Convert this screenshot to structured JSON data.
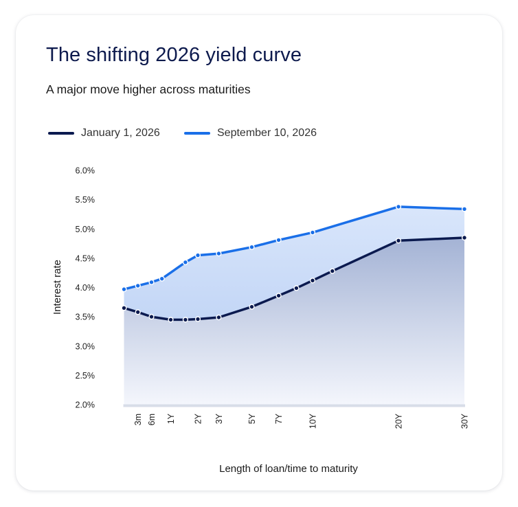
{
  "chart_data": {
    "type": "line",
    "title": "The shifting 2026 yield curve",
    "subtitle": "A major move higher across maturities",
    "xlabel": "Length of loan/time to maturity",
    "ylabel": "Interest rate",
    "ylim": [
      2.0,
      6.0
    ],
    "y_ticks": [
      "6.0%",
      "5.5%",
      "5.0%",
      "4.5%",
      "4.0%",
      "3.5%",
      "3.0%",
      "2.5%",
      "2.0%"
    ],
    "x_unit": "years",
    "x_ticks": [
      {
        "label": "3m",
        "x": 0.25
      },
      {
        "label": "6m",
        "x": 0.5
      },
      {
        "label": "1Y",
        "x": 1
      },
      {
        "label": "2Y",
        "x": 2
      },
      {
        "label": "3Y",
        "x": 3
      },
      {
        "label": "5Y",
        "x": 5
      },
      {
        "label": "7Y",
        "x": 7
      },
      {
        "label": "10Y",
        "x": 10
      },
      {
        "label": "20Y",
        "x": 20
      },
      {
        "label": "30Y",
        "x": 30
      }
    ],
    "grid": false,
    "legend_position": "top-left",
    "series": [
      {
        "name": "January 1, 2026",
        "color": "#0b1a4f",
        "points": [
          {
            "x": 0.083,
            "y": 3.65
          },
          {
            "x": 0.25,
            "y": 3.58
          },
          {
            "x": 0.5,
            "y": 3.5
          },
          {
            "x": 1,
            "y": 3.45
          },
          {
            "x": 1.5,
            "y": 3.45
          },
          {
            "x": 2,
            "y": 3.46
          },
          {
            "x": 3,
            "y": 3.49
          },
          {
            "x": 5,
            "y": 3.67
          },
          {
            "x": 7,
            "y": 3.86
          },
          {
            "x": 8.5,
            "y": 3.99
          },
          {
            "x": 10,
            "y": 4.12
          },
          {
            "x": 12,
            "y": 4.28
          },
          {
            "x": 20,
            "y": 4.8
          },
          {
            "x": 30,
            "y": 4.85
          }
        ]
      },
      {
        "name": "September 10, 2026",
        "color": "#1a6fe8",
        "points": [
          {
            "x": 0.083,
            "y": 3.97
          },
          {
            "x": 0.25,
            "y": 4.03
          },
          {
            "x": 0.5,
            "y": 4.09
          },
          {
            "x": 0.75,
            "y": 4.15
          },
          {
            "x": 1.5,
            "y": 4.43
          },
          {
            "x": 2,
            "y": 4.55
          },
          {
            "x": 3,
            "y": 4.58
          },
          {
            "x": 5,
            "y": 4.69
          },
          {
            "x": 7,
            "y": 4.81
          },
          {
            "x": 10,
            "y": 4.94
          },
          {
            "x": 20,
            "y": 5.38
          },
          {
            "x": 30,
            "y": 5.34
          }
        ]
      }
    ],
    "fill_colors": {
      "between_top": "#d9e6fb",
      "between_bottom": "#c3d6f6",
      "under_top": "#a4b3d5",
      "under_bottom": "#f4f6fc",
      "baseline": "#d8dde8"
    }
  }
}
